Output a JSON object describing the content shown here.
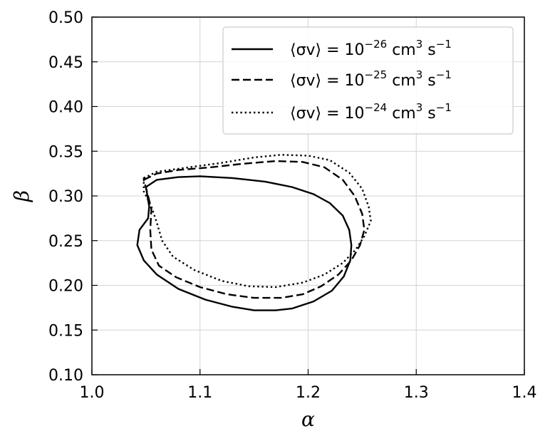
{
  "chart_data": {
    "type": "line",
    "xlabel": "α",
    "ylabel": "β",
    "xlim": [
      1.0,
      1.4
    ],
    "ylim": [
      0.1,
      0.5
    ],
    "xticks": [
      "1.0",
      "1.1",
      "1.2",
      "1.3",
      "1.4"
    ],
    "yticks": [
      "0.10",
      "0.15",
      "0.20",
      "0.25",
      "0.30",
      "0.35",
      "0.40",
      "0.45",
      "0.50"
    ],
    "grid": true,
    "legend_position": "top-right",
    "series": [
      {
        "name_prefix": "⟨σv⟩ = 10",
        "name_exp": "−26",
        "name_unit": " cm",
        "name_unit_exp": "3",
        "name_tail": " s",
        "name_tail_exp": "−1",
        "style": "solid",
        "points": [
          [
            1.05,
            0.31
          ],
          [
            1.06,
            0.318
          ],
          [
            1.08,
            0.321
          ],
          [
            1.1,
            0.322
          ],
          [
            1.13,
            0.32
          ],
          [
            1.16,
            0.316
          ],
          [
            1.185,
            0.31
          ],
          [
            1.205,
            0.302
          ],
          [
            1.22,
            0.292
          ],
          [
            1.232,
            0.278
          ],
          [
            1.238,
            0.262
          ],
          [
            1.24,
            0.245
          ],
          [
            1.239,
            0.228
          ],
          [
            1.233,
            0.21
          ],
          [
            1.222,
            0.194
          ],
          [
            1.205,
            0.182
          ],
          [
            1.185,
            0.174
          ],
          [
            1.17,
            0.172
          ],
          [
            1.15,
            0.172
          ],
          [
            1.13,
            0.176
          ],
          [
            1.105,
            0.184
          ],
          [
            1.08,
            0.196
          ],
          [
            1.06,
            0.212
          ],
          [
            1.048,
            0.228
          ],
          [
            1.042,
            0.245
          ],
          [
            1.044,
            0.262
          ],
          [
            1.052,
            0.275
          ],
          [
            1.053,
            0.288
          ],
          [
            1.05,
            0.31
          ]
        ]
      },
      {
        "name_prefix": "⟨σv⟩ = 10",
        "name_exp": "−25",
        "name_unit": " cm",
        "name_unit_exp": "3",
        "name_tail": " s",
        "name_tail_exp": "−1",
        "style": "dashed",
        "points": [
          [
            1.048,
            0.318
          ],
          [
            1.06,
            0.325
          ],
          [
            1.08,
            0.329
          ],
          [
            1.11,
            0.332
          ],
          [
            1.14,
            0.336
          ],
          [
            1.17,
            0.339
          ],
          [
            1.195,
            0.338
          ],
          [
            1.215,
            0.332
          ],
          [
            1.232,
            0.318
          ],
          [
            1.243,
            0.3
          ],
          [
            1.25,
            0.28
          ],
          [
            1.252,
            0.262
          ],
          [
            1.248,
            0.245
          ],
          [
            1.24,
            0.228
          ],
          [
            1.228,
            0.212
          ],
          [
            1.212,
            0.199
          ],
          [
            1.195,
            0.19
          ],
          [
            1.175,
            0.186
          ],
          [
            1.15,
            0.186
          ],
          [
            1.125,
            0.19
          ],
          [
            1.1,
            0.198
          ],
          [
            1.078,
            0.209
          ],
          [
            1.062,
            0.222
          ],
          [
            1.055,
            0.24
          ],
          [
            1.054,
            0.262
          ],
          [
            1.055,
            0.285
          ],
          [
            1.052,
            0.3
          ],
          [
            1.048,
            0.318
          ]
        ]
      },
      {
        "name_prefix": "⟨σv⟩ = 10",
        "name_exp": "−24",
        "name_unit": " cm",
        "name_unit_exp": "3",
        "name_tail": " s",
        "name_tail_exp": "−1",
        "style": "dotted",
        "points": [
          [
            1.048,
            0.32
          ],
          [
            1.06,
            0.327
          ],
          [
            1.09,
            0.332
          ],
          [
            1.12,
            0.337
          ],
          [
            1.15,
            0.343
          ],
          [
            1.175,
            0.346
          ],
          [
            1.2,
            0.345
          ],
          [
            1.22,
            0.34
          ],
          [
            1.238,
            0.326
          ],
          [
            1.25,
            0.308
          ],
          [
            1.256,
            0.288
          ],
          [
            1.258,
            0.272
          ],
          [
            1.252,
            0.255
          ],
          [
            1.244,
            0.24
          ],
          [
            1.232,
            0.225
          ],
          [
            1.215,
            0.212
          ],
          [
            1.195,
            0.203
          ],
          [
            1.17,
            0.198
          ],
          [
            1.145,
            0.199
          ],
          [
            1.12,
            0.205
          ],
          [
            1.095,
            0.217
          ],
          [
            1.075,
            0.232
          ],
          [
            1.065,
            0.25
          ],
          [
            1.06,
            0.27
          ],
          [
            1.055,
            0.288
          ],
          [
            1.048,
            0.305
          ],
          [
            1.048,
            0.32
          ]
        ]
      }
    ]
  }
}
